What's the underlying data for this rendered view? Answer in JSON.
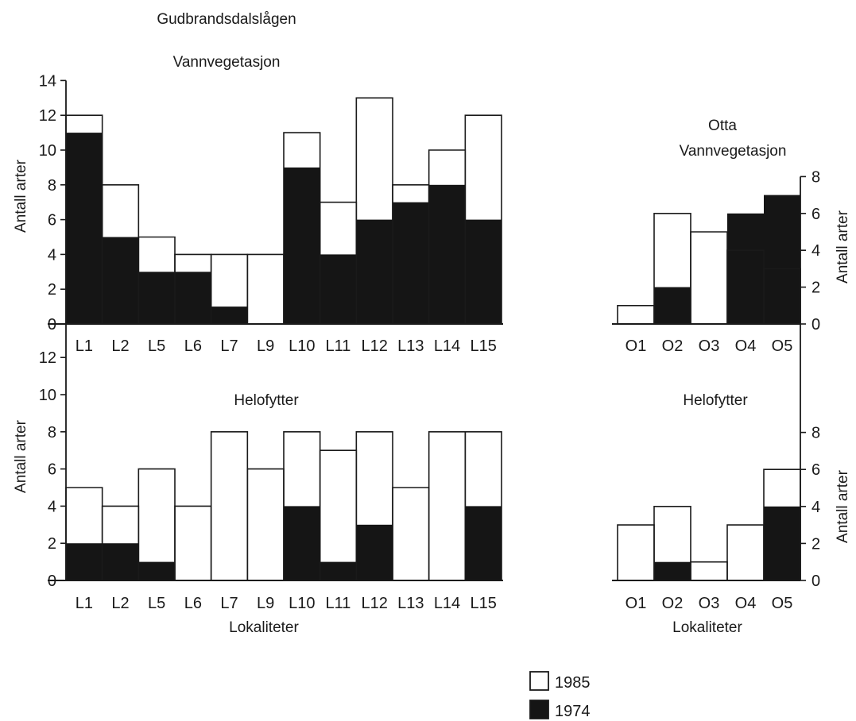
{
  "figure": {
    "main_title": "Gudbrandsdalslågen",
    "legend": [
      {
        "label": "1985",
        "color": "#ffffff"
      },
      {
        "label": "1974",
        "color": "#151515"
      }
    ]
  },
  "chart_data": [
    {
      "type": "bar",
      "title": "Vannvegetasjon",
      "ylabel": "Antall arter",
      "xlabel": "",
      "ylim": [
        0,
        14
      ],
      "yticks": [
        0,
        2,
        4,
        6,
        8,
        10,
        12,
        14
      ],
      "categories": [
        "L1",
        "L2",
        "L5",
        "L6",
        "L7",
        "L9",
        "L10",
        "L11",
        "L12",
        "L13",
        "L14",
        "L15"
      ],
      "series": [
        {
          "name": "1985",
          "values": [
            12,
            8,
            5,
            4,
            4,
            4,
            11,
            7,
            13,
            8,
            10,
            12
          ]
        },
        {
          "name": "1974",
          "values": [
            11,
            5,
            3,
            3,
            1,
            0,
            9,
            4,
            6,
            7,
            8,
            6
          ]
        }
      ]
    },
    {
      "type": "bar",
      "title": "Helofytter",
      "ylabel": "Antall arter",
      "xlabel": "Lokaliteter",
      "ylim": [
        0,
        12
      ],
      "yticks": [
        0,
        2,
        4,
        6,
        8,
        10,
        12
      ],
      "categories": [
        "L1",
        "L2",
        "L5",
        "L6",
        "L7",
        "L9",
        "L10",
        "L11",
        "L12",
        "L13",
        "L14",
        "L15"
      ],
      "series": [
        {
          "name": "1985",
          "values": [
            5,
            4,
            6,
            4,
            8,
            6,
            8,
            7,
            8,
            5,
            8,
            8
          ]
        },
        {
          "name": "1974",
          "values": [
            2,
            2,
            1,
            0,
            0,
            0,
            4,
            1,
            3,
            0,
            0,
            4
          ]
        }
      ]
    },
    {
      "type": "bar",
      "title": "Otta\nVannvegetasjon",
      "ylabel": "Antall arter",
      "xlabel": "",
      "ylim": [
        0,
        8
      ],
      "yticks": [
        0,
        2,
        4,
        6,
        8
      ],
      "categories": [
        "O1",
        "O2",
        "O3",
        "O4",
        "O5"
      ],
      "series": [
        {
          "name": "1985",
          "values": [
            1,
            6,
            5,
            4,
            3
          ]
        },
        {
          "name": "1974",
          "values": [
            0,
            2,
            0,
            6,
            7
          ]
        }
      ]
    },
    {
      "type": "bar",
      "title": "Helofytter",
      "ylabel": "Antall arter",
      "xlabel": "Lokaliteter",
      "ylim": [
        0,
        8
      ],
      "yticks": [
        0,
        2,
        4,
        6,
        8
      ],
      "categories": [
        "O1",
        "O2",
        "O3",
        "O4",
        "O5"
      ],
      "series": [
        {
          "name": "1985",
          "values": [
            3,
            4,
            1,
            3,
            6
          ]
        },
        {
          "name": "1974",
          "values": [
            0,
            1,
            0,
            0,
            4
          ]
        }
      ]
    }
  ]
}
